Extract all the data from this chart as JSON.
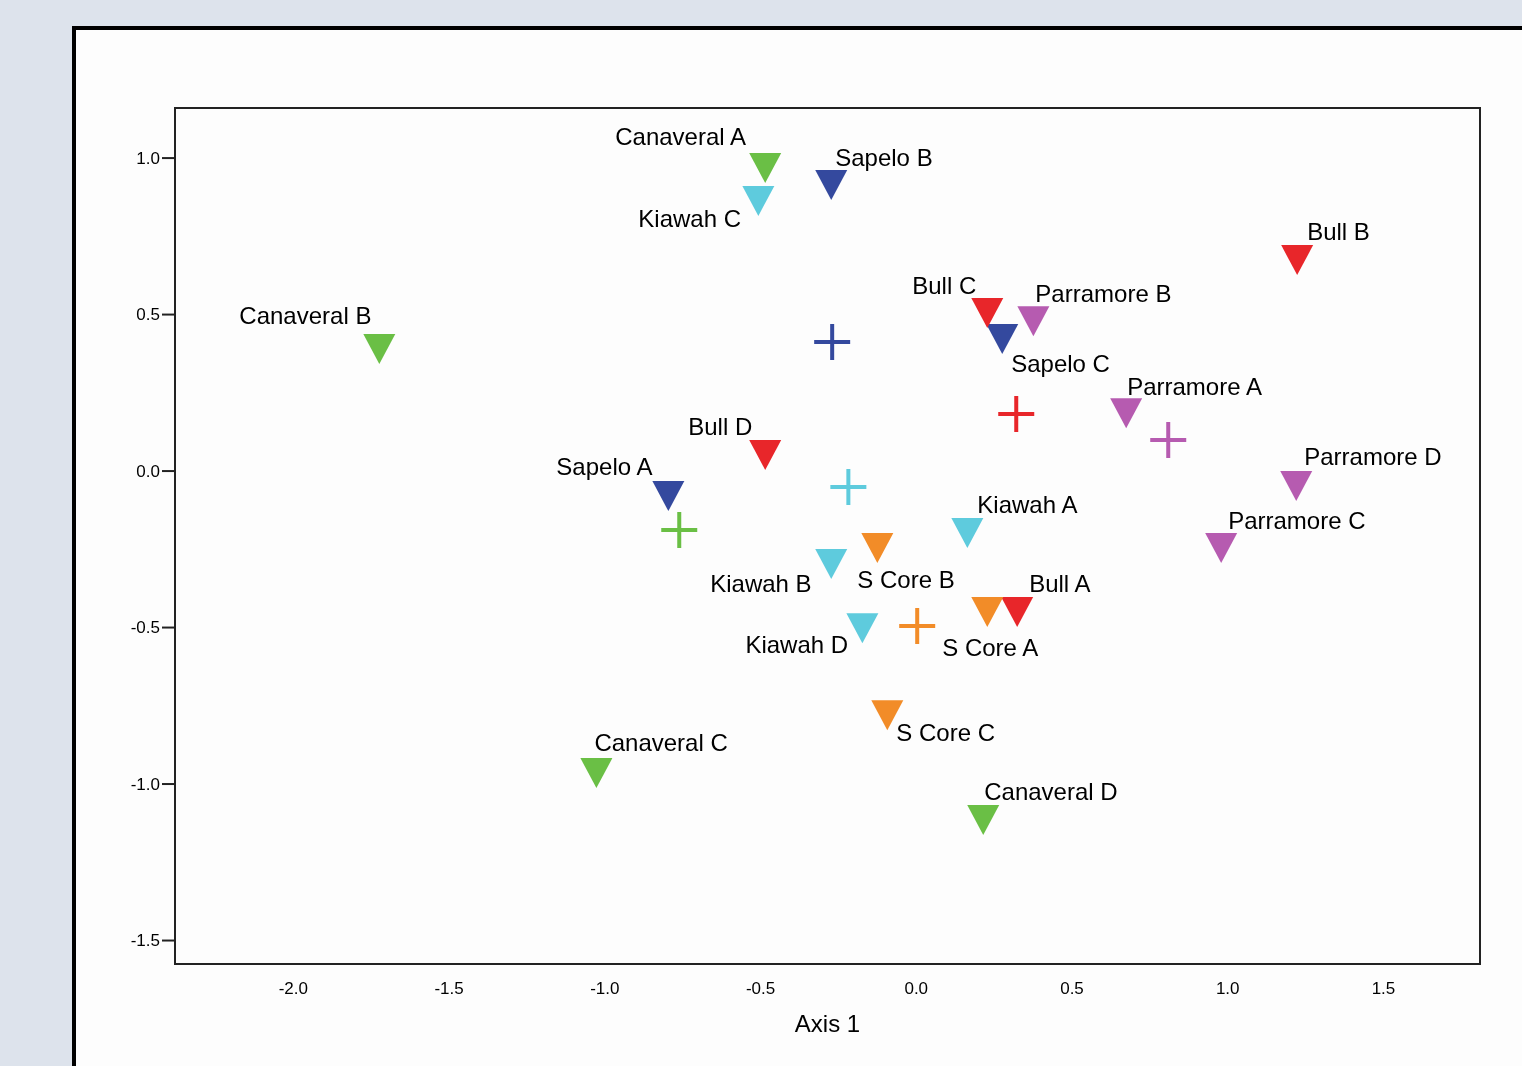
{
  "chart_data": {
    "type": "scatter",
    "xlabel": "Axis 1",
    "xlim": [
      -2.38,
      1.81
    ],
    "ylim": [
      -1.575,
      1.16
    ],
    "xticks": [
      {
        "value": -2,
        "label": "-2.0"
      },
      {
        "value": -1.5,
        "label": "-1.5"
      },
      {
        "value": -1,
        "label": "-1.0"
      },
      {
        "value": -0.5,
        "label": "-0.5"
      },
      {
        "value": 0,
        "label": "0.0"
      },
      {
        "value": 0.5,
        "label": "0.5"
      },
      {
        "value": 1,
        "label": "1.0"
      },
      {
        "value": 1.5,
        "label": "1.5"
      }
    ],
    "yticks": [
      {
        "value": -1.5,
        "label": "-1.5"
      },
      {
        "value": -1,
        "label": "-1.0"
      },
      {
        "value": -0.5,
        "label": "-0.5"
      },
      {
        "value": 0,
        "label": "0.0"
      },
      {
        "value": 0.5,
        "label": "0.5"
      },
      {
        "value": 1,
        "label": "1.0"
      }
    ],
    "grid": false,
    "series": [
      {
        "marker": "triangle",
        "color": "#6abf45",
        "x": [
          -0.485,
          -1.724,
          -1.027,
          0.215
        ],
        "values": [
          0.968,
          0.39,
          -0.965,
          -1.115
        ]
      },
      {
        "marker": "cross",
        "color": "#6abf45",
        "x": [
          -0.761
        ],
        "values": [
          -0.188
        ]
      },
      {
        "marker": "triangle",
        "color": "#5ecbdd",
        "x": [
          0.164,
          -0.273,
          -0.507,
          -0.173
        ],
        "values": [
          -0.198,
          -0.297,
          0.863,
          -0.502
        ]
      },
      {
        "marker": "cross",
        "color": "#5ecbdd",
        "x": [
          -0.218
        ],
        "values": [
          -0.051
        ]
      },
      {
        "marker": "triangle",
        "color": "#34499e",
        "x": [
          -0.796,
          -0.273,
          0.276
        ],
        "values": [
          -0.08,
          0.914,
          0.422
        ]
      },
      {
        "marker": "cross",
        "color": "#34499e",
        "x": [
          -0.27
        ],
        "values": [
          0.412
        ]
      },
      {
        "marker": "triangle",
        "color": "#e8262a",
        "x": [
          0.324,
          1.223,
          0.228,
          -0.485
        ],
        "values": [
          -0.45,
          0.674,
          0.505,
          0.051
        ]
      },
      {
        "marker": "cross",
        "color": "#e8262a",
        "x": [
          0.321
        ],
        "values": [
          0.182
        ]
      },
      {
        "marker": "triangle",
        "color": "#b65bb0",
        "x": [
          0.674,
          0.376,
          0.979,
          1.22
        ],
        "values": [
          0.185,
          0.479,
          -0.246,
          -0.048
        ]
      },
      {
        "marker": "cross",
        "color": "#b65bb0",
        "x": [
          0.809
        ],
        "values": [
          0.099
        ]
      },
      {
        "marker": "triangle",
        "color": "#f28c28",
        "x": [
          0.228,
          -0.125,
          -0.093
        ],
        "values": [
          -0.45,
          -0.246,
          -0.78
        ]
      },
      {
        "marker": "cross",
        "color": "#f28c28",
        "x": [
          0.003
        ],
        "values": [
          -0.495
        ]
      }
    ],
    "annotations": [
      {
        "text": "Canaveral A",
        "x": -0.485,
        "y": 0.968
      },
      {
        "text": "Sapelo B",
        "x": -0.273,
        "y": 0.914
      },
      {
        "text": "Kiawah C",
        "x": -0.507,
        "y": 0.863
      },
      {
        "text": "Bull B",
        "x": 1.223,
        "y": 0.674
      },
      {
        "text": "Canaveral B",
        "x": -1.724,
        "y": 0.39
      },
      {
        "text": "Bull C",
        "x": 0.228,
        "y": 0.505
      },
      {
        "text": "Parramore B",
        "x": 0.376,
        "y": 0.479
      },
      {
        "text": "Sapelo C",
        "x": 0.276,
        "y": 0.422
      },
      {
        "text": "Parramore A",
        "x": 0.674,
        "y": 0.185
      },
      {
        "text": "Bull D",
        "x": -0.485,
        "y": 0.051
      },
      {
        "text": "Sapelo A",
        "x": -0.796,
        "y": -0.08
      },
      {
        "text": "Parramore D",
        "x": 1.22,
        "y": -0.048
      },
      {
        "text": "Kiawah A",
        "x": 0.164,
        "y": -0.198
      },
      {
        "text": "Parramore C",
        "x": 0.979,
        "y": -0.246
      },
      {
        "text": "Kiawah B",
        "x": -0.273,
        "y": -0.297
      },
      {
        "text": "S Core B",
        "x": -0.125,
        "y": -0.246
      },
      {
        "text": "Bull A",
        "x": 0.324,
        "y": -0.45
      },
      {
        "text": "S Core A",
        "x": 0.228,
        "y": -0.45
      },
      {
        "text": "Kiawah D",
        "x": -0.173,
        "y": -0.502
      },
      {
        "text": "S Core C",
        "x": -0.093,
        "y": -0.78
      },
      {
        "text": "Canaveral C",
        "x": -1.027,
        "y": -0.965
      },
      {
        "text": "Canaveral D",
        "x": 0.215,
        "y": -1.115
      }
    ]
  }
}
